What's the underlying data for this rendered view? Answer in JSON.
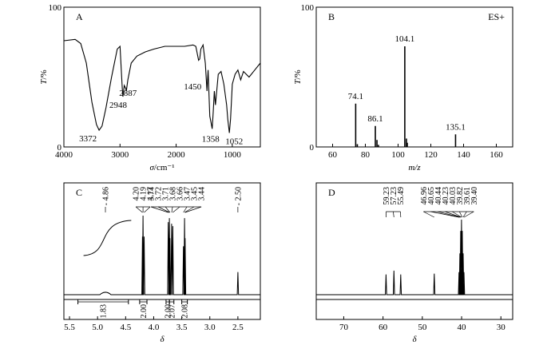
{
  "chart_data": [
    {
      "id": "A",
      "type": "line",
      "panel_label": "A",
      "xlabel_sym": "σ",
      "xlabel_unit": "/cm⁻¹",
      "ylabel_sym": "T",
      "ylabel_unit": "/%",
      "xlim": [
        4000,
        500
      ],
      "ylim": [
        0,
        100
      ],
      "x_ticks": [
        4000,
        3000,
        2000,
        1000
      ],
      "y_ticks": [
        0,
        100
      ],
      "points": [
        [
          4000,
          76
        ],
        [
          3800,
          77
        ],
        [
          3700,
          74
        ],
        [
          3600,
          60
        ],
        [
          3500,
          32
        ],
        [
          3420,
          16
        ],
        [
          3372,
          12
        ],
        [
          3320,
          15
        ],
        [
          3250,
          28
        ],
        [
          3150,
          50
        ],
        [
          3050,
          70
        ],
        [
          3000,
          72
        ],
        [
          2960,
          42
        ],
        [
          2948,
          36
        ],
        [
          2925,
          44
        ],
        [
          2900,
          42
        ],
        [
          2887,
          40
        ],
        [
          2860,
          48
        ],
        [
          2800,
          60
        ],
        [
          2700,
          65
        ],
        [
          2550,
          68
        ],
        [
          2400,
          70
        ],
        [
          2200,
          72
        ],
        [
          2000,
          72
        ],
        [
          1850,
          72
        ],
        [
          1700,
          73
        ],
        [
          1650,
          72
        ],
        [
          1600,
          62
        ],
        [
          1580,
          63
        ],
        [
          1560,
          70
        ],
        [
          1520,
          73
        ],
        [
          1480,
          60
        ],
        [
          1450,
          40
        ],
        [
          1430,
          55
        ],
        [
          1400,
          22
        ],
        [
          1380,
          18
        ],
        [
          1358,
          13
        ],
        [
          1340,
          25
        ],
        [
          1320,
          40
        ],
        [
          1300,
          30
        ],
        [
          1250,
          52
        ],
        [
          1200,
          54
        ],
        [
          1150,
          45
        ],
        [
          1100,
          30
        ],
        [
          1080,
          20
        ],
        [
          1052,
          10
        ],
        [
          1030,
          20
        ],
        [
          1000,
          45
        ],
        [
          950,
          52
        ],
        [
          900,
          55
        ],
        [
          850,
          48
        ],
        [
          800,
          54
        ],
        [
          700,
          50
        ],
        [
          600,
          55
        ],
        [
          500,
          60
        ]
      ],
      "peak_labels": [
        {
          "x": 3372,
          "y": 12,
          "label": "3372"
        },
        {
          "x": 2948,
          "y": 36,
          "label": "2948"
        },
        {
          "x": 2887,
          "y": 40,
          "label": "2887"
        },
        {
          "x": 1450,
          "y": 40,
          "label": "1450"
        },
        {
          "x": 1358,
          "y": 13,
          "label": "1358"
        },
        {
          "x": 1052,
          "y": 10,
          "label": "1052"
        }
      ]
    },
    {
      "id": "B",
      "type": "bar",
      "panel_label": "B",
      "ion_mode": "ES+",
      "xlabel": "m/z",
      "ylabel_sym": "T",
      "ylabel_unit": "/%",
      "xlim": [
        50,
        170
      ],
      "ylim": [
        0,
        100
      ],
      "x_ticks": [
        60,
        80,
        100,
        120,
        140,
        160
      ],
      "y_ticks": [
        0,
        100
      ],
      "peaks": [
        {
          "mz": 74.1,
          "intensity": 31
        },
        {
          "mz": 86.1,
          "intensity": 15
        },
        {
          "mz": 87.1,
          "intensity": 5
        },
        {
          "mz": 104.1,
          "intensity": 72
        },
        {
          "mz": 105.1,
          "intensity": 6
        },
        {
          "mz": 105.6,
          "intensity": 3
        },
        {
          "mz": 135.1,
          "intensity": 9
        },
        {
          "mz": 75.1,
          "intensity": 2
        },
        {
          "mz": 88.0,
          "intensity": 1.5
        }
      ],
      "peak_labels": [
        {
          "mz": 74.1,
          "intensity": 31,
          "label": "74.1"
        },
        {
          "mz": 86.1,
          "intensity": 15,
          "label": "86.1"
        },
        {
          "mz": 104.1,
          "intensity": 72,
          "label": "104.1"
        },
        {
          "mz": 135.1,
          "intensity": 9,
          "label": "135.1"
        }
      ]
    },
    {
      "id": "C",
      "type": "line",
      "panel_label": "C",
      "xlabel": "δ",
      "xlim": [
        5.6,
        2.1
      ],
      "x_ticks": [
        "5.5",
        "5.0",
        "4.5",
        "4.0",
        "3.5",
        "3.0",
        "2.5"
      ],
      "shift_groups": [
        {
          "labels": [
            "4.86"
          ],
          "center": 4.86,
          "spread": 0,
          "tick_ppm": [
            4.86
          ]
        },
        {
          "labels": [
            "4.20",
            "4.19",
            "4.17"
          ],
          "center": 4.19,
          "spread": 0.09,
          "tick_ppm": [
            4.2,
            4.19,
            4.17
          ]
        },
        {
          "labels": [
            "3.74",
            "3.72",
            "3.71",
            "3.68",
            "3.66",
            "3.47",
            "3.45",
            "3.44"
          ],
          "center": 3.6,
          "spread": 0.48,
          "tick_ppm": [
            3.74,
            3.72,
            3.71,
            3.68,
            3.66,
            3.47,
            3.45,
            3.44
          ]
        },
        {
          "labels": [
            "2.50"
          ],
          "center": 2.5,
          "spread": 0,
          "tick_ppm": [
            2.5
          ]
        }
      ],
      "peaks": [
        {
          "ppm": 4.86,
          "height": 0.03,
          "width": 0.2
        },
        {
          "ppm": 4.2,
          "height": 0.72
        },
        {
          "ppm": 4.19,
          "height": 0.98
        },
        {
          "ppm": 4.17,
          "height": 0.72
        },
        {
          "ppm": 3.74,
          "height": 0.9
        },
        {
          "ppm": 3.72,
          "height": 0.95
        },
        {
          "ppm": 3.71,
          "height": 0.7
        },
        {
          "ppm": 3.68,
          "height": 0.88
        },
        {
          "ppm": 3.66,
          "height": 0.85
        },
        {
          "ppm": 3.47,
          "height": 0.6
        },
        {
          "ppm": 3.45,
          "height": 0.95
        },
        {
          "ppm": 3.44,
          "height": 0.7
        },
        {
          "ppm": 2.5,
          "height": 0.28
        }
      ],
      "integration_curve": {
        "from": 5.25,
        "to": 4.4
      },
      "integrals": [
        {
          "from": 5.35,
          "to": 4.45,
          "value": "1.83"
        },
        {
          "from": 4.25,
          "to": 4.12,
          "value": "2.00"
        },
        {
          "from": 3.78,
          "to": 3.72,
          "value": "2.00"
        },
        {
          "from": 3.72,
          "to": 3.64,
          "value": "2.07"
        },
        {
          "from": 3.5,
          "to": 3.4,
          "value": "2.08"
        }
      ]
    },
    {
      "id": "D",
      "type": "line",
      "panel_label": "D",
      "xlabel": "δ",
      "xlim": [
        77,
        27
      ],
      "x_ticks": [
        70,
        60,
        50,
        40,
        30
      ],
      "shift_groups": [
        {
          "labels": [
            "59.23",
            "57.23",
            "55.49"
          ],
          "center": 57.4,
          "spread": 5.5,
          "tick_ppm": [
            59.23,
            57.23,
            55.49
          ]
        },
        {
          "labels": [
            "46.96",
            "40.65",
            "40.44",
            "40.23",
            "40.03",
            "39.82",
            "39.61",
            "39.40"
          ],
          "center": 43.3,
          "spread": 11.0,
          "tick_ppm": [
            46.96,
            40.65,
            40.44,
            40.23,
            40.03,
            39.82,
            39.61,
            39.4
          ]
        }
      ],
      "peaks": [
        {
          "ppm": 59.23,
          "height": 0.27
        },
        {
          "ppm": 57.23,
          "height": 0.32
        },
        {
          "ppm": 55.49,
          "height": 0.27
        },
        {
          "ppm": 46.96,
          "height": 0.28
        },
        {
          "ppm": 40.65,
          "height": 0.3
        },
        {
          "ppm": 40.44,
          "height": 0.55
        },
        {
          "ppm": 40.23,
          "height": 0.85
        },
        {
          "ppm": 40.03,
          "height": 1.0
        },
        {
          "ppm": 39.82,
          "height": 0.85
        },
        {
          "ppm": 39.61,
          "height": 0.55
        },
        {
          "ppm": 39.4,
          "height": 0.3
        }
      ]
    }
  ]
}
